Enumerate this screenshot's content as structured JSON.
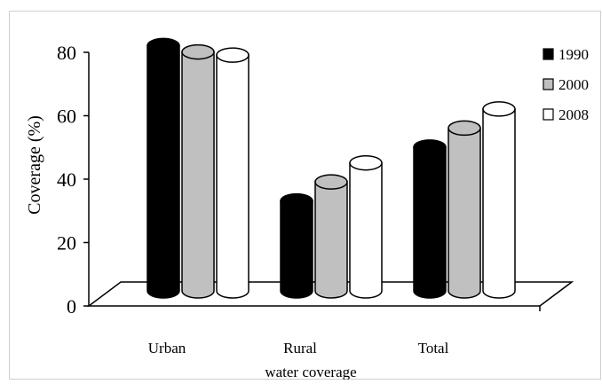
{
  "chart_data": {
    "type": "bar",
    "style": "3d-cylinder",
    "title": "",
    "ylabel": "Coverage (%)",
    "xlabel": "water coverage",
    "ylim": [
      0,
      80
    ],
    "yticks": [
      0,
      20,
      40,
      60,
      80
    ],
    "categories": [
      "Urban",
      "Rural",
      "Total"
    ],
    "series": [
      {
        "name": "1990",
        "color": "#000000",
        "values": [
          81,
          32,
          49
        ]
      },
      {
        "name": "2000",
        "color": "#c0c0c0",
        "values": [
          79,
          38,
          55
        ]
      },
      {
        "name": "2008",
        "color": "#ffffff",
        "values": [
          78,
          44,
          61
        ]
      }
    ],
    "legend": "right",
    "grid": false
  }
}
